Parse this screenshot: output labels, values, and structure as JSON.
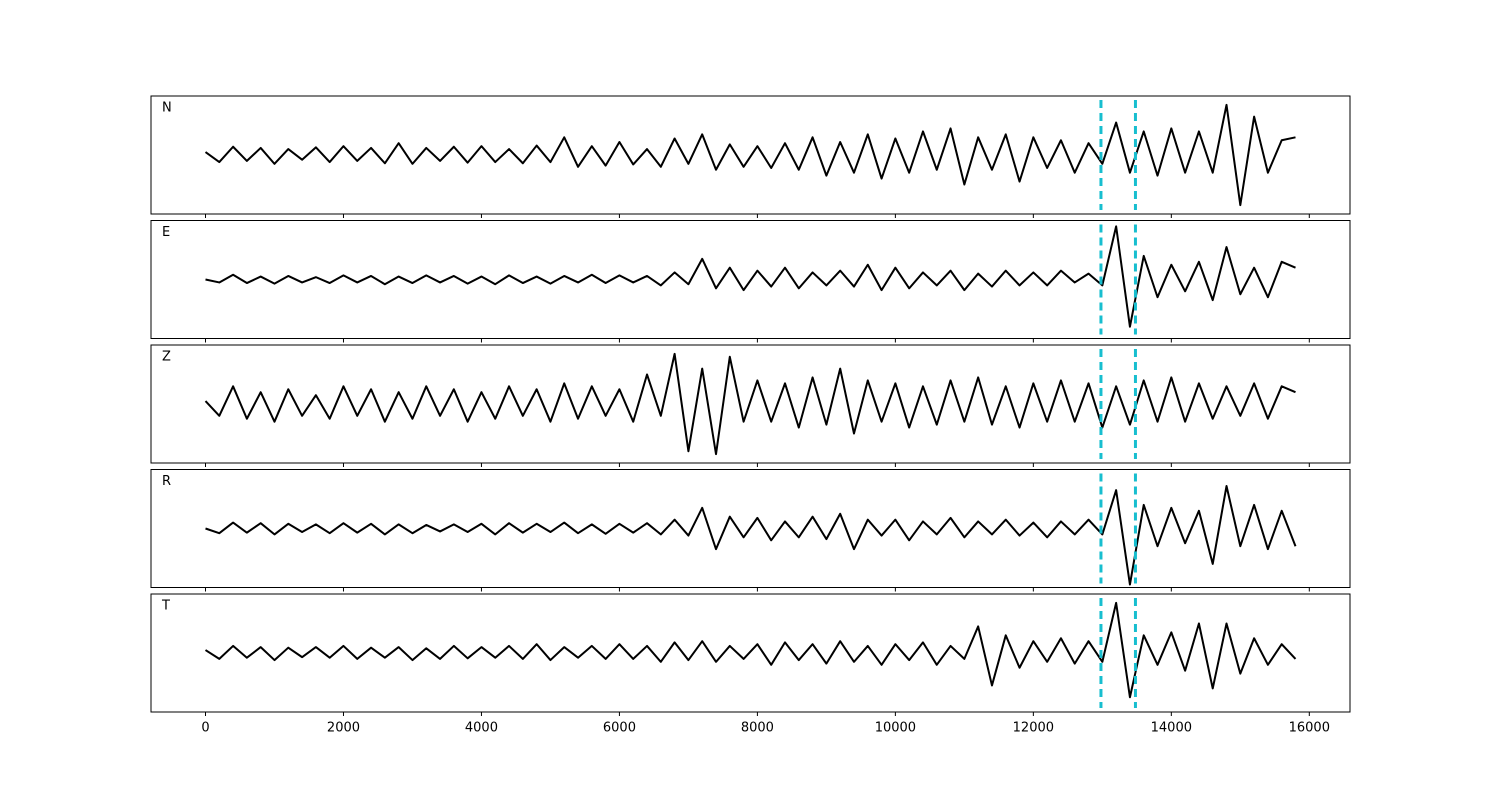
{
  "chart_data": [
    {
      "type": "line",
      "label": "N",
      "color": "#000000",
      "xlim": [
        -790,
        16590
      ],
      "ylim": [
        -1,
        1
      ],
      "vlines": [
        12980,
        13480
      ],
      "vline_color": "#17becf",
      "x": [
        0,
        200,
        400,
        600,
        800,
        1000,
        1200,
        1400,
        1600,
        1800,
        2000,
        2200,
        2400,
        2600,
        2800,
        3000,
        3200,
        3400,
        3600,
        3800,
        4000,
        4200,
        4400,
        4600,
        4800,
        5000,
        5200,
        5400,
        5600,
        5800,
        6000,
        6200,
        6400,
        6600,
        6800,
        7000,
        7200,
        7400,
        7600,
        7800,
        8000,
        8200,
        8400,
        8600,
        8800,
        9000,
        9200,
        9400,
        9600,
        9800,
        10000,
        10200,
        10400,
        10600,
        10800,
        11000,
        11200,
        11400,
        11600,
        11800,
        12000,
        12200,
        12400,
        12600,
        12800,
        13000,
        13200,
        13400,
        13600,
        13800,
        14000,
        14200,
        14400,
        14600,
        14800,
        15000,
        15200,
        15400,
        15600,
        15800
      ],
      "values": [
        0.05,
        -0.12,
        0.14,
        -0.1,
        0.12,
        -0.15,
        0.1,
        -0.08,
        0.13,
        -0.12,
        0.15,
        -0.1,
        0.12,
        -0.14,
        0.2,
        -0.15,
        0.12,
        -0.1,
        0.14,
        -0.13,
        0.15,
        -0.12,
        0.1,
        -0.14,
        0.16,
        -0.12,
        0.3,
        -0.2,
        0.15,
        -0.18,
        0.22,
        -0.16,
        0.1,
        -0.2,
        0.28,
        -0.15,
        0.35,
        -0.25,
        0.18,
        -0.2,
        0.15,
        -0.22,
        0.2,
        -0.25,
        0.3,
        -0.35,
        0.22,
        -0.3,
        0.35,
        -0.4,
        0.28,
        -0.3,
        0.4,
        -0.25,
        0.45,
        -0.5,
        0.3,
        -0.25,
        0.35,
        -0.45,
        0.3,
        -0.22,
        0.25,
        -0.3,
        0.2,
        -0.15,
        0.55,
        -0.3,
        0.4,
        -0.35,
        0.45,
        -0.3,
        0.4,
        -0.3,
        0.85,
        -0.85,
        0.65,
        -0.3,
        0.25,
        0.3
      ]
    },
    {
      "type": "line",
      "label": "E",
      "color": "#000000",
      "xlim": [
        -790,
        16590
      ],
      "ylim": [
        -1,
        1
      ],
      "vlines": [
        12980,
        13480
      ],
      "vline_color": "#17becf",
      "x": [
        0,
        200,
        400,
        600,
        800,
        1000,
        1200,
        1400,
        1600,
        1800,
        2000,
        2200,
        2400,
        2600,
        2800,
        3000,
        3200,
        3400,
        3600,
        3800,
        4000,
        4200,
        4400,
        4600,
        4800,
        5000,
        5200,
        5400,
        5600,
        5800,
        6000,
        6200,
        6400,
        6600,
        6800,
        7000,
        7200,
        7400,
        7600,
        7800,
        8000,
        8200,
        8400,
        8600,
        8800,
        9000,
        9200,
        9400,
        9600,
        9800,
        10000,
        10200,
        10400,
        10600,
        10800,
        11000,
        11200,
        11400,
        11600,
        11800,
        12000,
        12200,
        12400,
        12600,
        12800,
        13000,
        13200,
        13400,
        13600,
        13800,
        14000,
        14200,
        14400,
        14600,
        14800,
        15000,
        15200,
        15400,
        15600,
        15800
      ],
      "values": [
        0.0,
        -0.05,
        0.08,
        -0.06,
        0.05,
        -0.07,
        0.06,
        -0.05,
        0.04,
        -0.06,
        0.07,
        -0.05,
        0.06,
        -0.08,
        0.05,
        -0.06,
        0.07,
        -0.05,
        0.06,
        -0.07,
        0.05,
        -0.08,
        0.07,
        -0.06,
        0.05,
        -0.07,
        0.06,
        -0.05,
        0.08,
        -0.06,
        0.07,
        -0.05,
        0.06,
        -0.1,
        0.12,
        -0.08,
        0.35,
        -0.15,
        0.2,
        -0.18,
        0.15,
        -0.12,
        0.2,
        -0.15,
        0.12,
        -0.1,
        0.15,
        -0.12,
        0.25,
        -0.18,
        0.2,
        -0.15,
        0.12,
        -0.1,
        0.15,
        -0.18,
        0.1,
        -0.12,
        0.15,
        -0.1,
        0.12,
        -0.1,
        0.15,
        -0.05,
        0.1,
        -0.1,
        0.9,
        -0.8,
        0.4,
        -0.3,
        0.25,
        -0.2,
        0.3,
        -0.35,
        0.55,
        -0.25,
        0.2,
        -0.3,
        0.3,
        0.2
      ]
    },
    {
      "type": "line",
      "label": "Z",
      "color": "#000000",
      "xlim": [
        -790,
        16590
      ],
      "ylim": [
        -1,
        1
      ],
      "vlines": [
        12980,
        13480
      ],
      "vline_color": "#17becf",
      "x": [
        0,
        200,
        400,
        600,
        800,
        1000,
        1200,
        1400,
        1600,
        1800,
        2000,
        2200,
        2400,
        2600,
        2800,
        3000,
        3200,
        3400,
        3600,
        3800,
        4000,
        4200,
        4400,
        4600,
        4800,
        5000,
        5200,
        5400,
        5600,
        5800,
        6000,
        6200,
        6400,
        6600,
        6800,
        7000,
        7200,
        7400,
        7600,
        7800,
        8000,
        8200,
        8400,
        8600,
        8800,
        9000,
        9200,
        9400,
        9600,
        9800,
        10000,
        10200,
        10400,
        10600,
        10800,
        11000,
        11200,
        11400,
        11600,
        11800,
        12000,
        12200,
        12400,
        12600,
        12800,
        13000,
        13200,
        13400,
        13600,
        13800,
        14000,
        14200,
        14400,
        14600,
        14800,
        15000,
        15200,
        15400,
        15600,
        15800
      ],
      "values": [
        0.05,
        -0.2,
        0.3,
        -0.25,
        0.2,
        -0.3,
        0.25,
        -0.2,
        0.15,
        -0.25,
        0.3,
        -0.2,
        0.25,
        -0.3,
        0.2,
        -0.25,
        0.3,
        -0.2,
        0.25,
        -0.3,
        0.2,
        -0.25,
        0.3,
        -0.2,
        0.25,
        -0.3,
        0.35,
        -0.25,
        0.3,
        -0.2,
        0.25,
        -0.3,
        0.5,
        -0.2,
        0.85,
        -0.8,
        0.6,
        -0.85,
        0.8,
        -0.3,
        0.4,
        -0.3,
        0.35,
        -0.4,
        0.45,
        -0.35,
        0.6,
        -0.5,
        0.4,
        -0.3,
        0.35,
        -0.4,
        0.3,
        -0.35,
        0.4,
        -0.3,
        0.45,
        -0.35,
        0.3,
        -0.4,
        0.35,
        -0.3,
        0.4,
        -0.3,
        0.35,
        -0.4,
        0.3,
        -0.35,
        0.4,
        -0.3,
        0.45,
        -0.3,
        0.35,
        -0.25,
        0.3,
        -0.2,
        0.35,
        -0.25,
        0.3,
        0.2
      ]
    },
    {
      "type": "line",
      "label": "R",
      "color": "#000000",
      "xlim": [
        -790,
        16590
      ],
      "ylim": [
        -1,
        1
      ],
      "vlines": [
        12980,
        13480
      ],
      "vline_color": "#17becf",
      "x": [
        0,
        200,
        400,
        600,
        800,
        1000,
        1200,
        1400,
        1600,
        1800,
        2000,
        2200,
        2400,
        2600,
        2800,
        3000,
        3200,
        3400,
        3600,
        3800,
        4000,
        4200,
        4400,
        4600,
        4800,
        5000,
        5200,
        5400,
        5600,
        5800,
        6000,
        6200,
        6400,
        6600,
        6800,
        7000,
        7200,
        7400,
        7600,
        7800,
        8000,
        8200,
        8400,
        8600,
        8800,
        9000,
        9200,
        9400,
        9600,
        9800,
        10000,
        10200,
        10400,
        10600,
        10800,
        11000,
        11200,
        11400,
        11600,
        11800,
        12000,
        12200,
        12400,
        12600,
        12800,
        13000,
        13200,
        13400,
        13600,
        13800,
        14000,
        14200,
        14400,
        14600,
        14800,
        15000,
        15200,
        15400,
        15600,
        15800
      ],
      "values": [
        0.0,
        -0.08,
        0.1,
        -0.07,
        0.09,
        -0.1,
        0.08,
        -0.06,
        0.07,
        -0.08,
        0.09,
        -0.07,
        0.08,
        -0.1,
        0.07,
        -0.08,
        0.06,
        -0.05,
        0.07,
        -0.06,
        0.08,
        -0.1,
        0.09,
        -0.07,
        0.08,
        -0.06,
        0.1,
        -0.08,
        0.07,
        -0.09,
        0.08,
        -0.07,
        0.09,
        -0.1,
        0.15,
        -0.12,
        0.35,
        -0.35,
        0.2,
        -0.15,
        0.18,
        -0.2,
        0.12,
        -0.15,
        0.2,
        -0.18,
        0.25,
        -0.35,
        0.15,
        -0.12,
        0.15,
        -0.2,
        0.12,
        -0.1,
        0.18,
        -0.15,
        0.12,
        -0.1,
        0.15,
        -0.12,
        0.1,
        -0.15,
        0.12,
        -0.1,
        0.15,
        -0.1,
        0.65,
        -0.95,
        0.4,
        -0.3,
        0.35,
        -0.25,
        0.3,
        -0.6,
        0.72,
        -0.3,
        0.4,
        -0.35,
        0.3,
        -0.3
      ]
    },
    {
      "type": "line",
      "label": "T",
      "color": "#000000",
      "xlim": [
        -790,
        16590
      ],
      "ylim": [
        -1,
        1
      ],
      "vlines": [
        12980,
        13480
      ],
      "vline_color": "#17becf",
      "xticks": [
        0,
        2000,
        4000,
        6000,
        8000,
        10000,
        12000,
        14000,
        16000
      ],
      "x": [
        0,
        200,
        400,
        600,
        800,
        1000,
        1200,
        1400,
        1600,
        1800,
        2000,
        2200,
        2400,
        2600,
        2800,
        3000,
        3200,
        3400,
        3600,
        3800,
        4000,
        4200,
        4400,
        4600,
        4800,
        5000,
        5200,
        5400,
        5600,
        5800,
        6000,
        6200,
        6400,
        6600,
        6800,
        7000,
        7200,
        7400,
        7600,
        7800,
        8000,
        8200,
        8400,
        8600,
        8800,
        9000,
        9200,
        9400,
        9600,
        9800,
        10000,
        10200,
        10400,
        10600,
        10800,
        11000,
        11200,
        11400,
        11600,
        11800,
        12000,
        12200,
        12400,
        12600,
        12800,
        13000,
        13200,
        13400,
        13600,
        13800,
        14000,
        14200,
        14400,
        14600,
        14800,
        15000,
        15200,
        15400,
        15600,
        15800
      ],
      "values": [
        0.05,
        -0.1,
        0.12,
        -0.08,
        0.1,
        -0.12,
        0.09,
        -0.07,
        0.1,
        -0.08,
        0.12,
        -0.1,
        0.09,
        -0.08,
        0.1,
        -0.12,
        0.08,
        -0.1,
        0.12,
        -0.09,
        0.1,
        -0.08,
        0.12,
        -0.1,
        0.15,
        -0.12,
        0.1,
        -0.08,
        0.12,
        -0.1,
        0.15,
        -0.1,
        0.12,
        -0.15,
        0.18,
        -0.12,
        0.2,
        -0.15,
        0.12,
        -0.1,
        0.15,
        -0.2,
        0.18,
        -0.12,
        0.15,
        -0.18,
        0.2,
        -0.15,
        0.12,
        -0.2,
        0.15,
        -0.12,
        0.18,
        -0.2,
        0.12,
        -0.1,
        0.45,
        -0.55,
        0.3,
        -0.25,
        0.2,
        -0.15,
        0.25,
        -0.18,
        0.2,
        -0.15,
        0.85,
        -0.75,
        0.3,
        -0.2,
        0.35,
        -0.3,
        0.5,
        -0.6,
        0.5,
        -0.35,
        0.25,
        -0.2,
        0.15,
        -0.1
      ]
    }
  ]
}
